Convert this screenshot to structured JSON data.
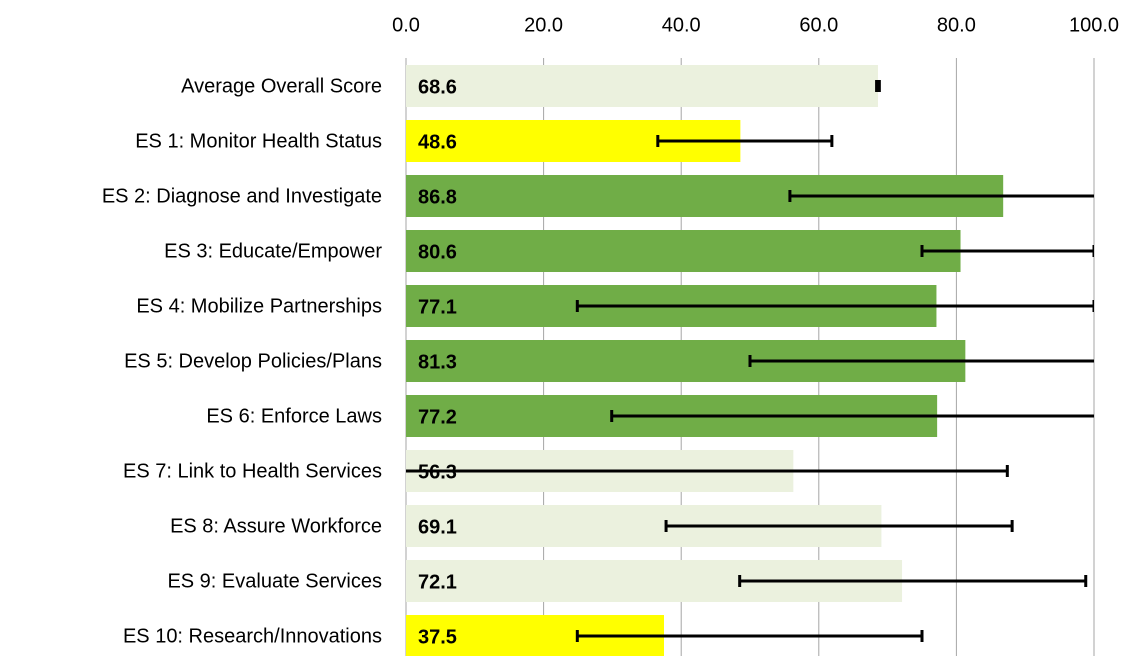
{
  "chart_data": {
    "type": "bar",
    "orientation": "horizontal",
    "categories": [
      "Average Overall Score",
      "ES 1: Monitor Health Status",
      "ES 2: Diagnose and Investigate",
      "ES 3: Educate/Empower",
      "ES 4: Mobilize Partnerships",
      "ES 5: Develop Policies/Plans",
      "ES 6: Enforce Laws",
      "ES 7: Link to Health Services",
      "ES 8: Assure Workforce",
      "ES 9: Evaluate Services",
      "ES 10: Research/Innovations"
    ],
    "values": [
      68.6,
      48.6,
      86.8,
      80.6,
      77.1,
      81.3,
      77.2,
      56.3,
      69.1,
      72.1,
      37.5
    ],
    "error_minus": [
      0.2,
      12.0,
      31.0,
      5.6,
      52.2,
      31.3,
      47.3,
      60.0,
      31.3,
      23.6,
      12.6
    ],
    "error_plus": [
      0.2,
      13.3,
      31.0,
      19.4,
      22.9,
      31.3,
      47.3,
      31.1,
      19.0,
      26.7,
      37.5
    ],
    "colors": [
      "#ebf1de",
      "#ffff00",
      "#70ad47",
      "#70ad47",
      "#70ad47",
      "#70ad47",
      "#70ad47",
      "#ebf1de",
      "#ebf1de",
      "#ebf1de",
      "#ffff00"
    ],
    "xlim": [
      0,
      100
    ],
    "xticks": [
      {
        "value": 0,
        "label": "0.0"
      },
      {
        "value": 20,
        "label": "20.0"
      },
      {
        "value": 40,
        "label": "40.0"
      },
      {
        "value": 60,
        "label": "60.0"
      },
      {
        "value": 80,
        "label": "80.0"
      },
      {
        "value": 100,
        "label": "100.0"
      }
    ],
    "grid": true
  }
}
